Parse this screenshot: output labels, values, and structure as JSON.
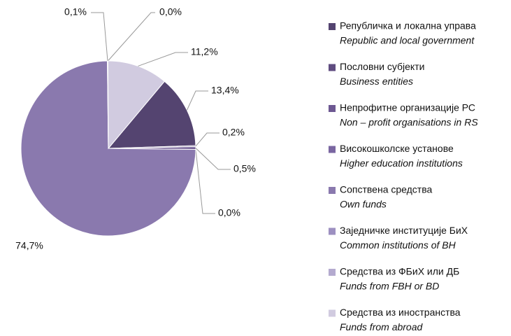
{
  "chart_data": {
    "type": "pie",
    "categories": [
      "Републичка и локална управа",
      "Пословни субјекти",
      "Непрофитне организације РС",
      "Високошколске установе",
      "Сопствена средства",
      "Заједничке институције БиХ",
      "Средства из ФБиХ или ДБ",
      "Средства из иностранства"
    ],
    "categories_en": [
      "Republic and local government",
      "Business entities",
      "Non – profit organisations in RS",
      "Higher education institutions",
      "Own funds",
      "Common institutions of BH",
      "Funds from FBH or BD",
      "Funds from abroad"
    ],
    "values": [
      13.4,
      0.2,
      0.5,
      0.0,
      74.7,
      0.1,
      0.0,
      11.2
    ],
    "value_labels": [
      "13,4%",
      "0,2%",
      "0,5%",
      "0,0%",
      "74,7%",
      "0,1%",
      "0,0%",
      "11,2%"
    ],
    "colors": [
      "#544470",
      "#5f4c80",
      "#6d5892",
      "#7a66a1",
      "#8a79ae",
      "#9d90c1",
      "#b4aacf",
      "#d1cbe0"
    ]
  }
}
